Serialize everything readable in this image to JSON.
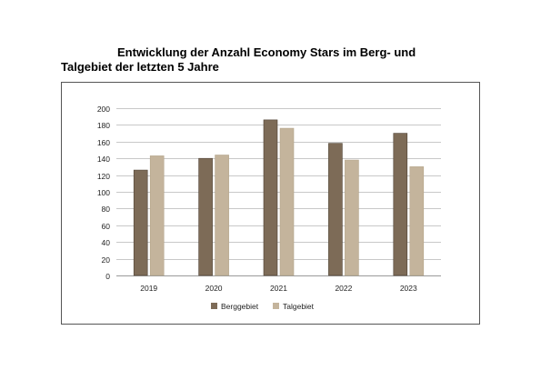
{
  "chart_data": {
    "type": "bar",
    "title_line1": "Entwicklung der Anzahl Economy Stars im Berg- und",
    "title_line2": "Talgebiet der letzten 5 Jahre",
    "categories": [
      "2019",
      "2020",
      "2021",
      "2022",
      "2023"
    ],
    "series": [
      {
        "name": "Berggebiet",
        "color": "#7d6b57",
        "values": [
          126,
          140,
          186,
          158,
          170
        ]
      },
      {
        "name": "Talgebiet",
        "color": "#c4b49c",
        "values": [
          143,
          144,
          176,
          138,
          130
        ]
      }
    ],
    "ylim": [
      0,
      200
    ],
    "yticks": [
      0,
      20,
      40,
      60,
      80,
      100,
      120,
      140,
      160,
      180,
      200
    ],
    "xlabel": "",
    "ylabel": "",
    "grid": true,
    "legend_position": "bottom"
  }
}
